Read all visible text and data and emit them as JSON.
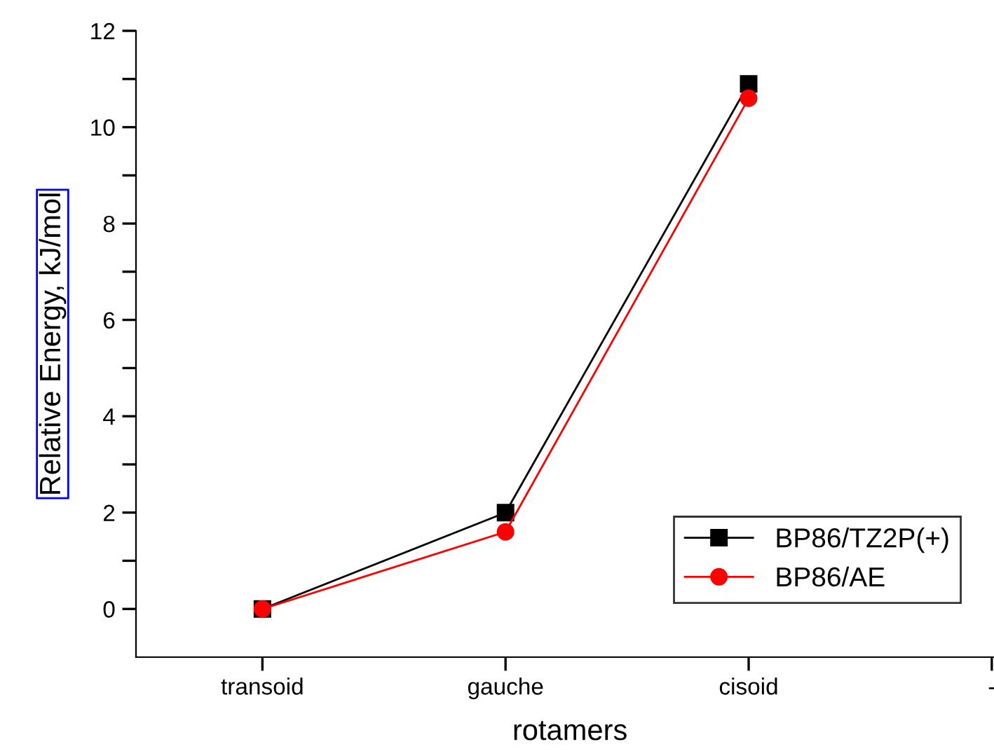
{
  "chart_data": {
    "type": "line",
    "xlabel": "rotamers",
    "ylabel": "Relative Energy, kJ/mol",
    "categories": [
      "transoid",
      "gauche",
      "cisoid",
      "-"
    ],
    "series": [
      {
        "name": "BP86/TZ2P(+)",
        "color": "#000000",
        "marker": "square",
        "values": [
          0,
          2.0,
          10.9,
          null
        ]
      },
      {
        "name": "BP86/AE",
        "color": "#ff0000",
        "marker": "circle",
        "values": [
          0,
          1.6,
          10.6,
          null
        ]
      }
    ],
    "ylim": [
      -1,
      12
    ],
    "yticks": [
      0,
      {
        "value": 1,
        "label": null
      },
      2,
      {
        "value": 3,
        "label": null
      },
      4,
      {
        "value": 5,
        "label": null
      },
      6,
      {
        "value": 7,
        "label": null
      },
      8,
      {
        "value": 9,
        "label": null
      },
      10,
      {
        "value": 11,
        "label": null
      },
      12
    ],
    "grid": false,
    "legend": "bottom right",
    "line_style": "solid"
  }
}
